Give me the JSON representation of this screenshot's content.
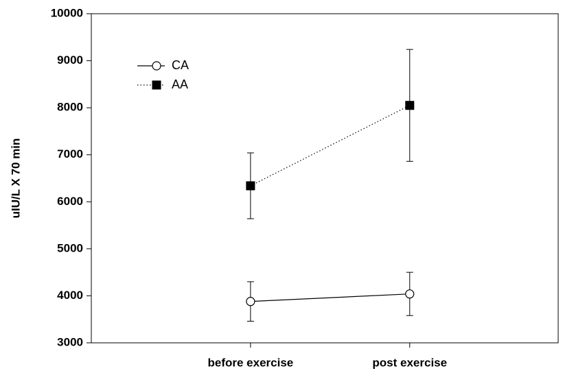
{
  "chart_data": {
    "type": "line",
    "y_label": "uIU/L X 70 min",
    "categories": [
      "before exercise",
      "post exercise"
    ],
    "series": [
      {
        "name": "CA",
        "color": "#000000",
        "marker": "circle-open",
        "line_style": "solid",
        "values": [
          3880,
          4040
        ],
        "errors": [
          420,
          460
        ]
      },
      {
        "name": "AA",
        "color": "#000000",
        "marker": "square-filled",
        "line_style": "dotted",
        "values": [
          6340,
          8050
        ],
        "errors": [
          700,
          1190
        ]
      }
    ],
    "ylim": [
      3000,
      10000
    ],
    "yticks": [
      3000,
      4000,
      5000,
      6000,
      7000,
      8000,
      9000,
      10000
    ],
    "legend": "upper left"
  }
}
